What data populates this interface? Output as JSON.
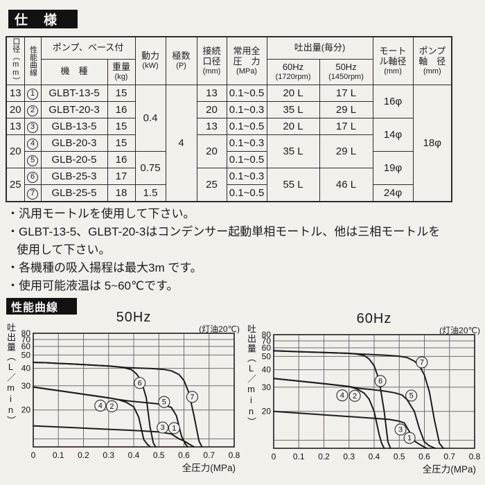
{
  "spec_section": {
    "title": "仕　様",
    "bullet": "・",
    "table": {
      "headers": {
        "bore_vertical": "口径（mm）",
        "curve_vertical": "性能曲線",
        "pump_base": "ポンプ、ベース付",
        "model": "機　種",
        "weight": {
          "l1": "重量",
          "l2": "(kg)"
        },
        "power": {
          "l1": "動力",
          "l2": "(kW)"
        },
        "poles": {
          "l1": "極数",
          "l2": "(P)"
        },
        "conn": {
          "l1": "接続",
          "l2": "口径",
          "l3": "(mm)"
        },
        "pressure": {
          "l1": "常用全",
          "l2": "圧　力",
          "l3": "(MPa)"
        },
        "discharge": "吐出量(毎分)",
        "hz60": {
          "l1": "60Hz",
          "l2": "(1720rpm)"
        },
        "hz50": {
          "l1": "50Hz",
          "l2": "(1450rpm)"
        },
        "motor_shaft": {
          "l1": "モート",
          "l2": "ル軸径",
          "l3": "(mm)"
        },
        "pump_shaft": {
          "l1": "ポンプ",
          "l2": "軸　径",
          "l3": "(mm)"
        }
      },
      "rows": [
        {
          "bore": "13",
          "no": "1",
          "model": "GLBT-13-5",
          "weight": "15",
          "conn": "13",
          "pressure": "0.1~0.5",
          "q60": "20 L",
          "q50": "17 L"
        },
        {
          "bore": "20",
          "no": "2",
          "model": "GLBT-20-3",
          "weight": "16",
          "conn": "20",
          "pressure": "0.1~0.3",
          "q60": "35 L",
          "q50": "29 L"
        },
        {
          "bore": "13",
          "no": "3",
          "model": "GLB-13-5",
          "weight": "15",
          "conn": "13",
          "pressure": "0.1~0.5",
          "q60": "20 L",
          "q50": "17 L"
        },
        {
          "bore": "20",
          "no": "4",
          "model": "GLB-20-3",
          "weight": "15",
          "conn": "20",
          "pressure": "0.1~0.3",
          "q60": "35 L",
          "q50": "29 L"
        },
        {
          "no": "5",
          "model": "GLB-20-5",
          "weight": "16",
          "pressure": "0.1~0.5"
        },
        {
          "bore": "25",
          "no": "6",
          "model": "GLB-25-3",
          "weight": "17",
          "conn": "25",
          "pressure": "0.1~0.3",
          "q60": "55 L",
          "q50": "46 L"
        },
        {
          "no": "7",
          "model": "GLB-25-5",
          "weight": "18",
          "pressure": "0.1~0.5"
        }
      ],
      "merged": {
        "power_04": "0.4",
        "power_075": "0.75",
        "power_15": "1.5",
        "poles": "4",
        "shaft_16": "16φ",
        "shaft_14": "14φ",
        "shaft_19": "19φ",
        "shaft_24": "24φ",
        "pump_shaft": "18φ"
      }
    },
    "notes": [
      {
        "text": "汎用モートルを使用して下さい。"
      },
      {
        "text": "GLBT-13-5、GLBT-20-3はコンデンサー起動単相モートル、他は三相モートルを",
        "text2": "使用して下さい。"
      },
      {
        "text": "各機種の吸入揚程は最大3m です。"
      },
      {
        "text": "使用可能液温は 5~60℃です。"
      }
    ]
  },
  "curves_section": {
    "title": "性能曲線"
  },
  "chart_data": [
    {
      "type": "line",
      "title": "50Hz",
      "annotation": "(灯油20℃)",
      "xlabel": "全圧力(MPa)",
      "ylabel": "吐出量(L/min)",
      "ylabel_vertical": "吐出量（L／min）",
      "xlim": [
        0,
        0.8
      ],
      "ylim": [
        0,
        80
      ],
      "yscale": "nonlinear-compressed-top",
      "y_anchor_fractions": [
        [
          80,
          0
        ],
        [
          70,
          0.055
        ],
        [
          60,
          0.116
        ],
        [
          50,
          0.191
        ],
        [
          40,
          0.309
        ],
        [
          30,
          0.462
        ],
        [
          20,
          0.675
        ],
        [
          10,
          0.929
        ],
        [
          0,
          1.0
        ]
      ],
      "xticks": [
        0,
        0.1,
        0.2,
        0.3,
        0.4,
        0.5,
        0.6,
        0.7,
        0.8
      ],
      "yticks": [
        80,
        70,
        60,
        50,
        40,
        30,
        20
      ],
      "ygrid": [
        70,
        60,
        50,
        40,
        30,
        20,
        10
      ],
      "grid": true,
      "series": [
        {
          "name": "curve-6",
          "points": [
            [
              0,
              44.5
            ],
            [
              0.05,
              44.2
            ],
            [
              0.1,
              43.7
            ],
            [
              0.15,
              43.3
            ],
            [
              0.2,
              42.8
            ],
            [
              0.25,
              42.3
            ],
            [
              0.3,
              41.8
            ],
            [
              0.33,
              41.3
            ],
            [
              0.36,
              40.6
            ],
            [
              0.39,
              39.3
            ],
            [
              0.41,
              37
            ],
            [
              0.43,
              33
            ],
            [
              0.45,
              25
            ],
            [
              0.465,
              14
            ],
            [
              0.478,
              5
            ],
            [
              0.487,
              0
            ]
          ]
        },
        {
          "name": "curve-7",
          "points": [
            [
              0,
              44.5
            ],
            [
              0.05,
              44.2
            ],
            [
              0.1,
              43.7
            ],
            [
              0.15,
              43.3
            ],
            [
              0.2,
              42.8
            ],
            [
              0.25,
              42.3
            ],
            [
              0.3,
              41.8
            ],
            [
              0.33,
              41.3
            ],
            [
              0.37,
              40.6
            ],
            [
              0.42,
              40.2
            ],
            [
              0.47,
              39.9
            ],
            [
              0.52,
              39.4
            ],
            [
              0.55,
              38.6
            ],
            [
              0.58,
              36.5
            ],
            [
              0.6,
              33
            ],
            [
              0.62,
              27
            ],
            [
              0.64,
              18
            ],
            [
              0.66,
              7
            ],
            [
              0.672,
              0
            ]
          ]
        },
        {
          "name": "curve-4-2",
          "points": [
            [
              0,
              29.5
            ],
            [
              0.05,
              28.7
            ],
            [
              0.1,
              28
            ],
            [
              0.2,
              26.5
            ],
            [
              0.3,
              25
            ],
            [
              0.34,
              24.2
            ],
            [
              0.37,
              23.2
            ],
            [
              0.4,
              21.3
            ],
            [
              0.42,
              17.5
            ],
            [
              0.44,
              9
            ],
            [
              0.455,
              3
            ],
            [
              0.466,
              0
            ]
          ]
        },
        {
          "name": "curve-5",
          "points": [
            [
              0,
              29.5
            ],
            [
              0.05,
              28.7
            ],
            [
              0.1,
              28
            ],
            [
              0.2,
              26.5
            ],
            [
              0.3,
              25
            ],
            [
              0.34,
              24.3
            ],
            [
              0.38,
              23.7
            ],
            [
              0.43,
              23.2
            ],
            [
              0.48,
              22.7
            ],
            [
              0.52,
              22.2
            ],
            [
              0.55,
              21
            ],
            [
              0.57,
              18
            ],
            [
              0.59,
              11
            ],
            [
              0.605,
              4
            ],
            [
              0.615,
              0
            ]
          ]
        },
        {
          "name": "curve-3-1",
          "points": [
            [
              0,
              14.5
            ],
            [
              0.1,
              14.1
            ],
            [
              0.2,
              13.7
            ],
            [
              0.3,
              13.3
            ],
            [
              0.4,
              12.9
            ],
            [
              0.5,
              12.4
            ],
            [
              0.55,
              11.7
            ],
            [
              0.58,
              10
            ],
            [
              0.6,
              7.5
            ],
            [
              0.62,
              3.5
            ],
            [
              0.64,
              0
            ]
          ]
        }
      ],
      "labels": [
        {
          "n": "6",
          "x": 0.424,
          "y": 31.6
        },
        {
          "n": "7",
          "x": 0.633,
          "y": 25.4
        },
        {
          "n": "4",
          "x": 0.267,
          "y": 21.8
        },
        {
          "n": "2",
          "x": 0.313,
          "y": 21.5
        },
        {
          "n": "5",
          "x": 0.521,
          "y": 23.3
        },
        {
          "n": "3",
          "x": 0.515,
          "y": 13.9
        },
        {
          "n": "1",
          "x": 0.561,
          "y": 13.7
        }
      ]
    },
    {
      "type": "line",
      "title": "60Hz",
      "annotation": "(灯油20℃)",
      "xlabel": "全圧力(MPa)",
      "ylabel": "吐出量(L/min)",
      "ylabel_vertical": "吐出量（L／min）",
      "xlim": [
        0,
        0.8
      ],
      "ylim": [
        0,
        80
      ],
      "yscale": "nonlinear-compressed-top",
      "y_anchor_fractions": [
        [
          80,
          0
        ],
        [
          70,
          0.055
        ],
        [
          60,
          0.116
        ],
        [
          50,
          0.191
        ],
        [
          40,
          0.309
        ],
        [
          30,
          0.462
        ],
        [
          20,
          0.675
        ],
        [
          10,
          0.929
        ],
        [
          0,
          1.0
        ]
      ],
      "xticks": [
        0,
        0.1,
        0.2,
        0.3,
        0.4,
        0.5,
        0.6,
        0.7,
        0.8
      ],
      "yticks": [
        80,
        70,
        60,
        50,
        40,
        30,
        20
      ],
      "ygrid": [
        70,
        60,
        50,
        40,
        30,
        20,
        10
      ],
      "grid": true,
      "series": [
        {
          "name": "curve-6",
          "points": [
            [
              0,
              56.5
            ],
            [
              0.1,
              55.5
            ],
            [
              0.2,
              54.6
            ],
            [
              0.3,
              53.5
            ],
            [
              0.33,
              52.7
            ],
            [
              0.36,
              51
            ],
            [
              0.38,
              48
            ],
            [
              0.4,
              43
            ],
            [
              0.42,
              34
            ],
            [
              0.44,
              20
            ],
            [
              0.455,
              8
            ],
            [
              0.465,
              0
            ]
          ]
        },
        {
          "name": "curve-7",
          "points": [
            [
              0,
              56.5
            ],
            [
              0.1,
              55.5
            ],
            [
              0.2,
              54.6
            ],
            [
              0.3,
              53.5
            ],
            [
              0.34,
              52.8
            ],
            [
              0.4,
              52
            ],
            [
              0.45,
              51.3
            ],
            [
              0.5,
              50.2
            ],
            [
              0.53,
              49.2
            ],
            [
              0.56,
              46.5
            ],
            [
              0.58,
              43
            ],
            [
              0.6,
              37
            ],
            [
              0.62,
              28
            ],
            [
              0.64,
              17
            ],
            [
              0.66,
              6
            ],
            [
              0.676,
              0
            ]
          ]
        },
        {
          "name": "curve-4-2",
          "points": [
            [
              0,
              35
            ],
            [
              0.1,
              33.5
            ],
            [
              0.2,
              32
            ],
            [
              0.3,
              30.3
            ],
            [
              0.33,
              29.3
            ],
            [
              0.36,
              27.6
            ],
            [
              0.38,
              25
            ],
            [
              0.4,
              20
            ],
            [
              0.42,
              12
            ],
            [
              0.43,
              6
            ],
            [
              0.44,
              0
            ]
          ]
        },
        {
          "name": "curve-5",
          "points": [
            [
              0,
              35
            ],
            [
              0.1,
              33.5
            ],
            [
              0.2,
              32
            ],
            [
              0.3,
              30.4
            ],
            [
              0.34,
              29.5
            ],
            [
              0.39,
              29
            ],
            [
              0.44,
              28.4
            ],
            [
              0.48,
              27.7
            ],
            [
              0.51,
              26.8
            ],
            [
              0.53,
              25
            ],
            [
              0.56,
              20
            ],
            [
              0.58,
              14
            ],
            [
              0.6,
              8
            ],
            [
              0.62,
              3
            ],
            [
              0.643,
              0
            ]
          ]
        },
        {
          "name": "curve-3-1",
          "points": [
            [
              0,
              20
            ],
            [
              0.1,
              19.4
            ],
            [
              0.2,
              18.8
            ],
            [
              0.3,
              18.2
            ],
            [
              0.4,
              17.6
            ],
            [
              0.46,
              17.2
            ],
            [
              0.5,
              16.6
            ],
            [
              0.52,
              16
            ],
            [
              0.54,
              13
            ],
            [
              0.56,
              9
            ],
            [
              0.58,
              5
            ],
            [
              0.6,
              1.5
            ],
            [
              0.61,
              0
            ]
          ]
        }
      ],
      "labels": [
        {
          "n": "6",
          "x": 0.425,
          "y": 33.5
        },
        {
          "n": "7",
          "x": 0.59,
          "y": 45.5
        },
        {
          "n": "4",
          "x": 0.273,
          "y": 26.6
        },
        {
          "n": "2",
          "x": 0.323,
          "y": 26.4
        },
        {
          "n": "5",
          "x": 0.548,
          "y": 26.5
        },
        {
          "n": "3",
          "x": 0.505,
          "y": 13.7
        },
        {
          "n": "1",
          "x": 0.541,
          "y": 10.8
        }
      ]
    }
  ]
}
